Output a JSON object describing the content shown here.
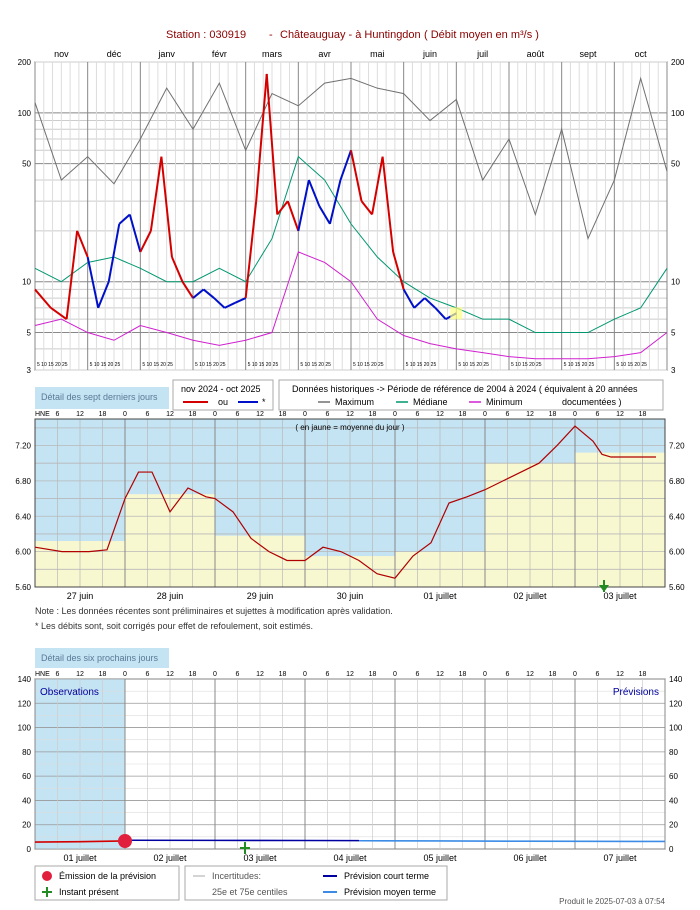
{
  "title": {
    "station": "Station : 030919",
    "separator": "-",
    "river": "Châteauguay - à Huntingdon",
    "subject": "( Débit moyen en m³/s )"
  },
  "colors": {
    "title": "#8b0000",
    "current_a": "#d40000",
    "current_b": "#0010c8",
    "maximum": "#707070",
    "median": "#009670",
    "minimum": "#d020d0",
    "obs_bg": "#c4e3f3",
    "daily_mean_bg": "#f7f7d0",
    "emission": "#e0203c",
    "present": "#228b22",
    "short_term": "#0000a0",
    "medium_term": "#3c8ce6"
  },
  "annual": {
    "months": [
      "nov",
      "déc",
      "janv",
      "févr",
      "mars",
      "avr",
      "mai",
      "juin",
      "juil",
      "août",
      "sept",
      "oct"
    ],
    "day_ticks": "5 10 15 20 25",
    "y_scale": "log",
    "y_ticks": [
      "200",
      "100",
      "50",
      "10",
      "5",
      "3"
    ],
    "legend": {
      "detail_label": "Détail des sept derniers jours",
      "period": "nov 2024 - oct 2025",
      "or": "ou",
      "star": "*",
      "historic_title": "Données historiques -> Période de référence  de 2004 à 2024   ( équivalent à 20 années",
      "maximum": "Maximum",
      "median": "Médiane",
      "minimum": "Minimum",
      "documented": "documentées )"
    }
  },
  "week": {
    "hne": "HNE",
    "hour_ticks": [
      "6",
      "12",
      "18",
      "0",
      "6",
      "12",
      "18",
      "0",
      "6",
      "12",
      "18",
      "0",
      "6",
      "12",
      "18",
      "0",
      "6",
      "12",
      "18",
      "0",
      "6",
      "12",
      "18",
      "0",
      "6",
      "12",
      "18"
    ],
    "note_top": "( en jaune = moyenne du jour )",
    "y_ticks": [
      "7.20",
      "6.80",
      "6.40",
      "6.00",
      "5.60"
    ],
    "days": [
      "27 juin",
      "28 juin",
      "29 juin",
      "30 juin",
      "01 juillet",
      "02 juillet",
      "03 juillet"
    ],
    "note1": "Note : Les données récentes sont préliminaires et sujettes à modification après validation.",
    "note2": "* Les débits sont, soit corrigés pour effet de refoulement, soit estimés."
  },
  "forecast": {
    "title": "Détail des six prochains jours",
    "hne": "HNE",
    "observations": "Observations",
    "previsions": "Prévisions",
    "y_ticks": [
      "140",
      "120",
      "100",
      "80",
      "60",
      "40",
      "20",
      "0"
    ],
    "days": [
      "01 juillet",
      "02 juillet",
      "03 juillet",
      "04 juillet",
      "05 juillet",
      "06 juillet",
      "07 juillet"
    ],
    "legend": {
      "emission": "Émission de la prévision",
      "present": "Instant présent",
      "uncertainty": "Incertitudes:",
      "percentiles": "25e et 75e centiles",
      "short_term": "Prévision court terme",
      "medium_term": "Prévision moyen terme"
    },
    "produced": "Produit le 2025-07-03 à 07:54"
  },
  "chart_data": [
    {
      "type": "line",
      "title": "Station : 030919 - Châteauguay - à Huntingdon ( Débit moyen en m³/s )",
      "x_categories": [
        "nov",
        "déc",
        "janv",
        "févr",
        "mars",
        "avr",
        "mai",
        "juin",
        "juil",
        "août",
        "sept",
        "oct"
      ],
      "yscale": "log",
      "ylim": [
        3,
        200
      ],
      "series": [
        {
          "name": "Maximum",
          "x": [
            0,
            0.5,
            1,
            1.5,
            2,
            2.5,
            3,
            3.5,
            4,
            4.5,
            5,
            5.5,
            6,
            6.5,
            7,
            7.5,
            8,
            8.5,
            9,
            9.5,
            10,
            10.5,
            11,
            11.5,
            12
          ],
          "values": [
            115,
            40,
            55,
            38,
            70,
            140,
            80,
            150,
            60,
            130,
            110,
            150,
            160,
            140,
            130,
            90,
            120,
            40,
            70,
            25,
            80,
            18,
            40,
            160,
            45
          ]
        },
        {
          "name": "Médiane",
          "x": [
            0,
            0.5,
            1,
            1.5,
            2,
            2.5,
            3,
            3.5,
            4,
            4.5,
            5,
            5.5,
            6,
            6.5,
            7,
            7.5,
            8,
            8.5,
            9,
            9.5,
            10,
            10.5,
            11,
            11.5,
            12
          ],
          "values": [
            12,
            10,
            13,
            14,
            12,
            10,
            10,
            12,
            10,
            18,
            55,
            40,
            22,
            14,
            10,
            8,
            7,
            6,
            6,
            5,
            5,
            5,
            6,
            7,
            12
          ]
        },
        {
          "name": "Minimum",
          "x": [
            0,
            0.5,
            1,
            1.5,
            2,
            2.5,
            3,
            3.5,
            4,
            4.5,
            5,
            5.5,
            6,
            6.5,
            7,
            7.5,
            8,
            8.5,
            9,
            9.5,
            10,
            10.5,
            11,
            11.5,
            12
          ],
          "values": [
            5.5,
            6,
            5,
            4.5,
            5.5,
            5,
            4.5,
            4.2,
            4.5,
            5,
            15,
            13,
            10,
            6,
            4.8,
            4.3,
            4,
            3.8,
            3.6,
            3.5,
            3.5,
            3.5,
            3.6,
            3.8,
            5
          ]
        },
        {
          "name": "nov 2024 - oct 2025",
          "x": [
            0,
            0.3,
            0.6,
            0.8,
            1,
            1.2,
            1.4,
            1.6,
            1.8,
            2,
            2.2,
            2.4,
            2.6,
            2.8,
            3,
            3.2,
            3.4,
            3.6,
            3.8,
            4,
            4.2,
            4.4,
            4.6,
            4.8,
            5,
            5.2,
            5.4,
            5.6,
            5.8,
            6,
            6.2,
            6.4,
            6.6,
            6.8,
            7,
            7.2,
            7.4,
            7.6,
            7.8,
            8
          ],
          "values": [
            9,
            7,
            6,
            20,
            14,
            7,
            10,
            22,
            25,
            15,
            20,
            55,
            14,
            10,
            8,
            9,
            8,
            7,
            7.5,
            8,
            30,
            170,
            25,
            30,
            20,
            40,
            28,
            22,
            40,
            60,
            30,
            25,
            55,
            15,
            9,
            7,
            8,
            7,
            6,
            6.5
          ]
        }
      ]
    },
    {
      "type": "line",
      "title": "Détail des sept derniers jours",
      "x_categories": [
        "27 juin",
        "28 juin",
        "29 juin",
        "30 juin",
        "01 juillet",
        "02 juillet",
        "03 juillet"
      ],
      "ylim": [
        5.6,
        7.5
      ],
      "daily_means": [
        6.12,
        6.65,
        6.18,
        5.95,
        6.0,
        7.0,
        7.12
      ],
      "series": [
        {
          "name": "Débit",
          "x": [
            0,
            0.3,
            0.6,
            0.8,
            1.0,
            1.15,
            1.3,
            1.5,
            1.7,
            1.9,
            2.0,
            2.2,
            2.4,
            2.6,
            2.8,
            3.0,
            3.2,
            3.4,
            3.6,
            3.8,
            4.0,
            4.2,
            4.4,
            4.6,
            4.8,
            5.0,
            5.2,
            5.4,
            5.6,
            5.8,
            6.0,
            6.2,
            6.3,
            6.4,
            6.6,
            6.9
          ],
          "values": [
            6.05,
            6.0,
            6.0,
            6.02,
            6.6,
            6.9,
            6.9,
            6.45,
            6.72,
            6.62,
            6.6,
            6.45,
            6.15,
            6.0,
            5.9,
            5.9,
            6.05,
            6.0,
            5.9,
            5.75,
            5.7,
            5.95,
            6.1,
            6.55,
            6.62,
            6.7,
            6.8,
            6.9,
            7.0,
            7.2,
            7.42,
            7.25,
            7.1,
            7.07,
            7.07,
            7.07
          ]
        }
      ]
    },
    {
      "type": "line",
      "title": "Détail des six prochains jours",
      "x_categories": [
        "01 juillet",
        "02 juillet",
        "03 juillet",
        "04 juillet",
        "05 juillet",
        "06 juillet",
        "07 juillet"
      ],
      "ylim": [
        0,
        140
      ],
      "series": [
        {
          "name": "Observations",
          "x": [
            0,
            0.5,
            1.0
          ],
          "values": [
            5.7,
            6.0,
            6.6
          ]
        },
        {
          "name": "Prévision court terme",
          "x": [
            1.0,
            2.0,
            3.0,
            3.6
          ],
          "values": [
            7.2,
            7.1,
            7.0,
            6.9
          ]
        },
        {
          "name": "Prévision moyen terme",
          "x": [
            3.6,
            4.5,
            5.5,
            7.0
          ],
          "values": [
            6.8,
            6.6,
            6.4,
            6.2
          ]
        }
      ]
    }
  ]
}
